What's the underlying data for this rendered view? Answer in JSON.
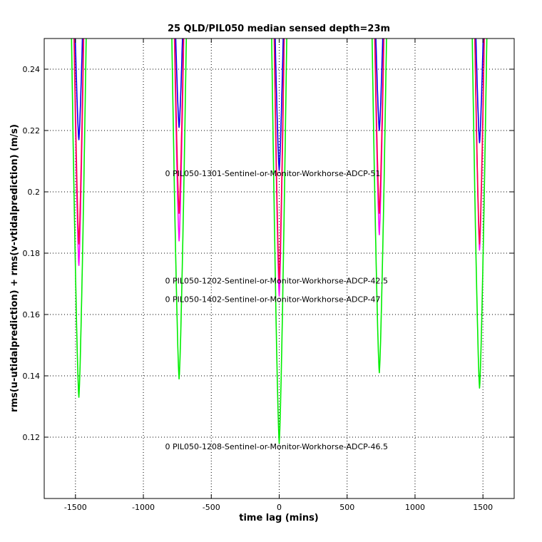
{
  "chart_data": {
    "type": "line",
    "title": "25 QLD/PIL050 median sensed depth=23m",
    "xlabel": "time lag (mins)",
    "ylabel": "rms(u-utidalprediction) + rms(v-vtidalprediction) (m/s)",
    "xlim": [
      -1730,
      1730
    ],
    "ylim": [
      0.1,
      0.25
    ],
    "xticks": [
      -1500,
      -1000,
      -500,
      0,
      500,
      1000,
      1500
    ],
    "yticks": [
      0.12,
      0.14,
      0.16,
      0.18,
      0.2,
      0.22,
      0.24
    ],
    "grid": true,
    "dip_centers": [
      -1475,
      -737,
      0,
      737,
      1475
    ],
    "series": [
      {
        "name": "PIL050-1208-Sentinel-or-Monitor-Workhorse-ADCP-46.5",
        "color": "#00ee00",
        "minima": [
          0.133,
          0.139,
          0.118,
          0.141,
          0.136
        ]
      },
      {
        "name": "PIL050-1402-Sentinel-or-Monitor-Workhorse-ADCP-47",
        "color": "#ff00ff",
        "minima": [
          0.176,
          0.184,
          0.166,
          0.186,
          0.181
        ]
      },
      {
        "name": "PIL050-1202-Sentinel-or-Monitor-Workhorse-ADCP-42.5",
        "color": "#ff0044",
        "minima": [
          0.183,
          0.193,
          0.171,
          0.193,
          0.183
        ]
      },
      {
        "name": "PIL050-1301-Sentinel-or-Monitor-Workhorse-ADCP-51",
        "color": "#0000ee",
        "minima": [
          0.217,
          0.221,
          0.207,
          0.22,
          0.216
        ]
      }
    ],
    "annotations": [
      {
        "text": "0 PIL050-1301-Sentinel-or-Monitor-Workhorse-ADCP-51",
        "x": 0,
        "y": 0.206
      },
      {
        "text": "0 PIL050-1202-Sentinel-or-Monitor-Workhorse-ADCP-42.5",
        "x": 0,
        "y": 0.171
      },
      {
        "text": "0 PIL050-1402-Sentinel-or-Monitor-Workhorse-ADCP-47",
        "x": 0,
        "y": 0.165
      },
      {
        "text": "0 PIL050-1208-Sentinel-or-Monitor-Workhorse-ADCP-46.5",
        "x": 0,
        "y": 0.117
      }
    ]
  }
}
